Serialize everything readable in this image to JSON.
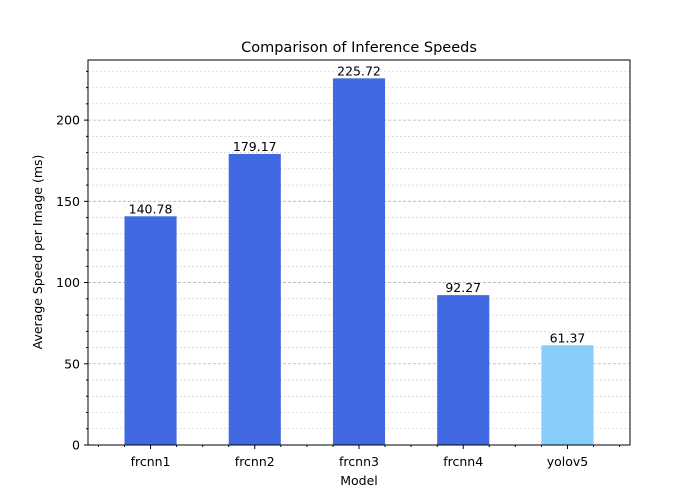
{
  "chart_data": {
    "type": "bar",
    "title": "Comparison of Inference Speeds",
    "xlabel": "Model",
    "ylabel": "Average Speed per Image (ms)",
    "categories": [
      "frcnn1",
      "frcnn2",
      "frcnn3",
      "frcnn4",
      "yolov5"
    ],
    "values": [
      140.78,
      179.17,
      225.72,
      92.27,
      61.37
    ],
    "value_labels": [
      "140.78",
      "179.17",
      "225.72",
      "92.27",
      "61.37"
    ],
    "bar_colors": [
      "#4169e1",
      "#4169e1",
      "#4169e1",
      "#4169e1",
      "#87cefa"
    ],
    "ylim": [
      0,
      237.0
    ],
    "yticks": [
      0,
      50,
      100,
      150,
      200
    ],
    "ytick_labels": [
      "0",
      "50",
      "100",
      "150",
      "200"
    ],
    "minor_ytick_step": 10,
    "grid": "y-axis, major and minor, dashed",
    "legend": "none"
  }
}
